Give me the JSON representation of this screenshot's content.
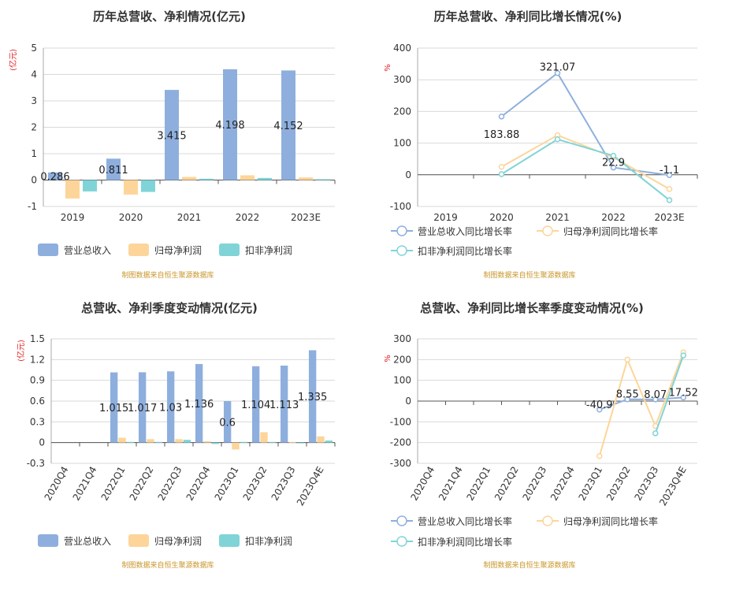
{
  "chart_data": [
    {
      "id": "c1",
      "type": "bar",
      "title": "历年总营收、净利情况(亿元)",
      "unit": "(亿元)",
      "categories": [
        "2019",
        "2020",
        "2021",
        "2022",
        "2023E"
      ],
      "ylim": [
        -1,
        5
      ],
      "yticks": [
        "-1",
        "0",
        "1",
        "2",
        "3",
        "4",
        "5"
      ],
      "series": [
        {
          "name": "营业总收入",
          "color": "#8eafdd",
          "values": [
            0.286,
            0.811,
            3.415,
            4.198,
            4.152
          ],
          "labels": [
            "0.286",
            "0.811",
            "3.415",
            "4.198",
            "4.152"
          ]
        },
        {
          "name": "归母净利润",
          "color": "#fdd59a",
          "values": [
            -0.7,
            -0.55,
            0.12,
            0.18,
            0.1
          ]
        },
        {
          "name": "扣非净利润",
          "color": "#80d4d7",
          "values": [
            -0.43,
            -0.45,
            0.05,
            0.08,
            0.03
          ]
        }
      ],
      "source": "制图数据来自恒生聚源数据库"
    },
    {
      "id": "c2",
      "type": "line",
      "title": "历年总营收、净利同比增长情况(%)",
      "unit": "%",
      "categories": [
        "2019",
        "2020",
        "2021",
        "2022",
        "2023E"
      ],
      "ylim": [
        -100,
        400
      ],
      "yticks": [
        "-100",
        "0",
        "100",
        "200",
        "300",
        "400"
      ],
      "series": [
        {
          "name": "营业总收入同比增长率",
          "color": "#8eafdd",
          "values": [
            null,
            183.88,
            321.07,
            22.9,
            -1.1
          ],
          "labels": [
            "",
            "183.88",
            "321.07",
            "22.9",
            "-1.1"
          ]
        },
        {
          "name": "归母净利润同比增长率",
          "color": "#fdd59a",
          "values": [
            null,
            25,
            125,
            55,
            -45
          ]
        },
        {
          "name": "扣非净利润同比增长率",
          "color": "#80d4d7",
          "values": [
            null,
            2,
            112,
            60,
            -80
          ]
        }
      ],
      "source": "制图数据来自恒生聚源数据库"
    },
    {
      "id": "c3",
      "type": "bar",
      "title": "总营收、净利季度变动情况(亿元)",
      "unit": "(亿元)",
      "categories": [
        "2020Q4",
        "2021Q4",
        "2022Q1",
        "2022Q2",
        "2022Q3",
        "2022Q4",
        "2023Q1",
        "2023Q2",
        "2023Q3",
        "2023Q4E"
      ],
      "ylim": [
        -0.3,
        1.5
      ],
      "yticks": [
        "-0.3",
        "0",
        "0.3",
        "0.6",
        "0.9",
        "1.2",
        "1.5"
      ],
      "series": [
        {
          "name": "营业总收入",
          "color": "#8eafdd",
          "values": [
            null,
            null,
            1.015,
            1.017,
            1.03,
            1.136,
            0.6,
            1.104,
            1.113,
            1.335
          ],
          "labels": [
            "",
            "",
            "1.015",
            "1.017",
            "1.03",
            "1.136",
            "0.6",
            "1.104",
            "1.113",
            "1.335"
          ]
        },
        {
          "name": "归母净利润",
          "color": "#fdd59a",
          "values": [
            null,
            null,
            0.07,
            0.05,
            0.05,
            0.02,
            -0.1,
            0.15,
            0.01,
            0.09
          ]
        },
        {
          "name": "扣非净利润",
          "color": "#80d4d7",
          "values": [
            null,
            null,
            0.01,
            0.01,
            0.04,
            -0.02,
            0.01,
            0.01,
            -0.01,
            0.03
          ]
        }
      ],
      "source": "制图数据来自恒生聚源数据库"
    },
    {
      "id": "c4",
      "type": "line",
      "title": "总营收、净利同比增长率季度变动情况(%)",
      "unit": "%",
      "categories": [
        "2020Q4",
        "2021Q4",
        "2022Q1",
        "2022Q2",
        "2022Q3",
        "2022Q4",
        "2023Q1",
        "2023Q2",
        "2023Q3",
        "2023Q4E"
      ],
      "ylim": [
        -300,
        300
      ],
      "yticks": [
        "-300",
        "-200",
        "-100",
        "0",
        "100",
        "200",
        "300"
      ],
      "series": [
        {
          "name": "营业总收入同比增长率",
          "color": "#8eafdd",
          "values": [
            null,
            null,
            null,
            null,
            null,
            null,
            -40.9,
            8.55,
            8.07,
            17.52
          ],
          "labels": [
            "",
            "",
            "",
            "",
            "",
            "",
            "-40.9",
            "8.55",
            "8.07",
            "17.52"
          ]
        },
        {
          "name": "归母净利润同比增长率",
          "color": "#fdd59a",
          "values": [
            null,
            null,
            null,
            null,
            null,
            null,
            -265,
            200,
            -120,
            235
          ]
        },
        {
          "name": "扣非净利润同比增长率",
          "color": "#80d4d7",
          "values": [
            null,
            null,
            null,
            null,
            null,
            null,
            null,
            null,
            -155,
            220
          ]
        }
      ],
      "source": "制图数据来自恒生聚源数据库"
    }
  ]
}
